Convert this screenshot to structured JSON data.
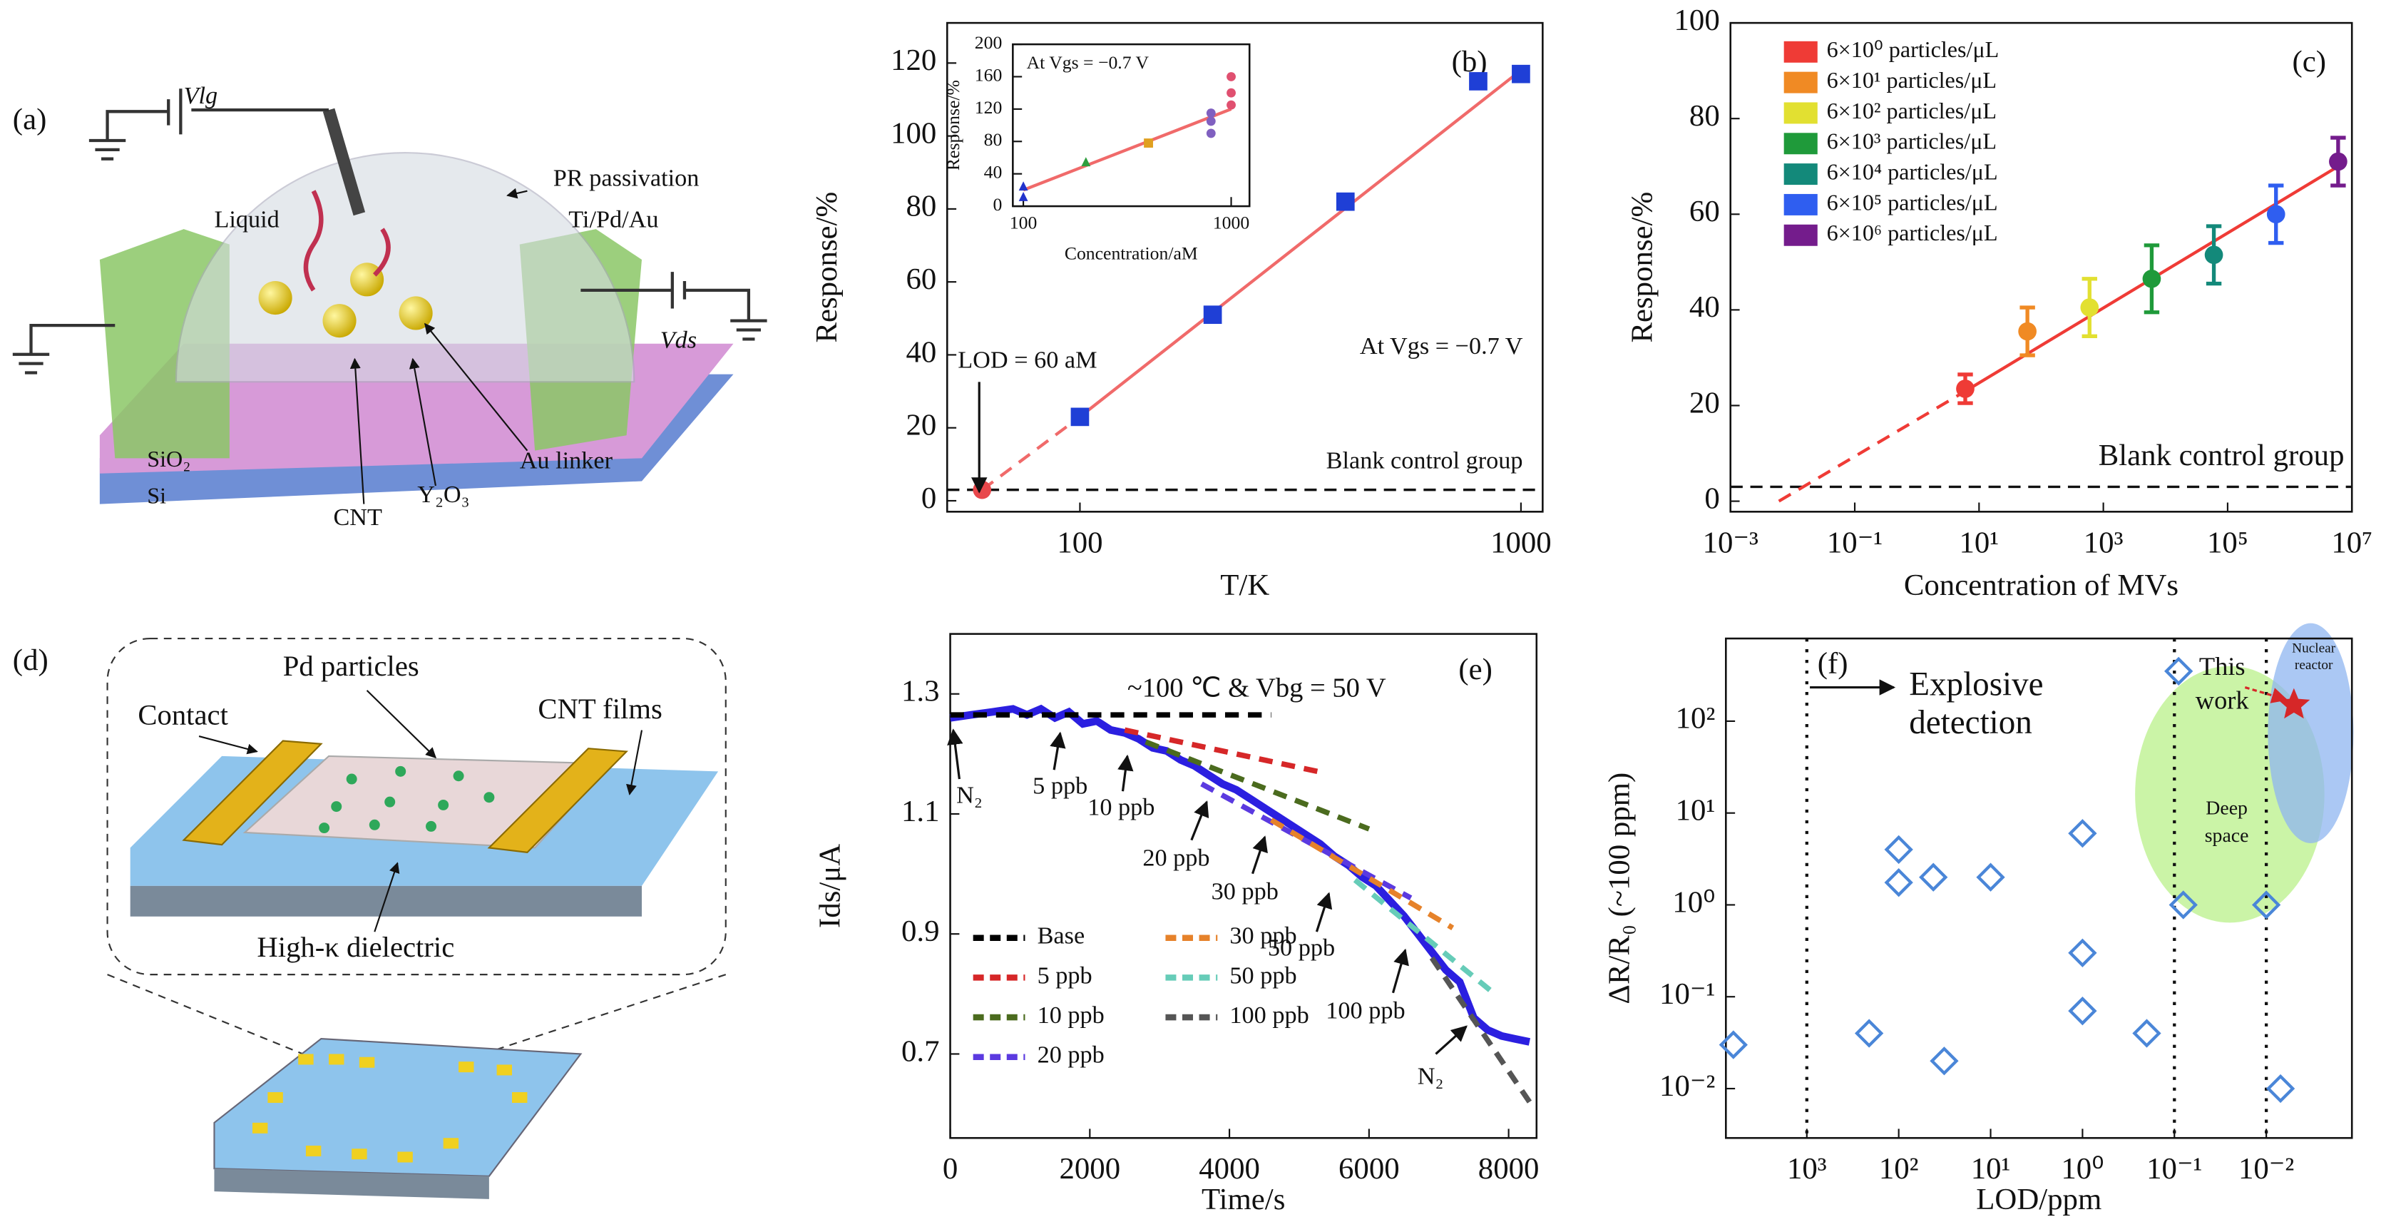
{
  "diagrams": {
    "a": {
      "labels": [
        "(a)",
        "Vlg",
        "PR passivation",
        "Ti/Pd/Au",
        "Liquid",
        "Vds",
        "SiO₂",
        "Si",
        "CNT",
        "Y₂O₃",
        "Au linker"
      ]
    },
    "d": {
      "labels": [
        "(d)",
        "Pd particles",
        "Contact",
        "CNT films",
        "High-κ dielectric"
      ]
    }
  },
  "chart_data": [
    {
      "type": "scatter",
      "panel_label": "(b)",
      "x_label": "T/K",
      "y_label": "Response/%",
      "xscale": "log",
      "xlim": [
        50,
        1120
      ],
      "ylim": [
        -3,
        131
      ],
      "xticks": [
        100,
        1000
      ],
      "yticks": [
        0,
        20,
        40,
        60,
        80,
        100,
        120
      ],
      "series": [
        {
          "color": "#1f3fd6",
          "marker": "square",
          "x": [
            100,
            200,
            400,
            800,
            1000
          ],
          "values": [
            23,
            51,
            82,
            115,
            117
          ]
        },
        {
          "color": "#e8474b",
          "marker": "circle",
          "x": [
            60
          ],
          "values": [
            3
          ]
        }
      ],
      "fits": [
        {
          "color": "#f06a6a",
          "dash": true,
          "x": [
            60,
            100
          ],
          "values": [
            3,
            23
          ]
        },
        {
          "color": "#f06a6a",
          "dash": false,
          "x": [
            100,
            1000
          ],
          "values": [
            23,
            118
          ]
        }
      ],
      "hline": 3,
      "annotations": [
        "LOD = 60 aM",
        "At Vgs = −0.7 V",
        "Blank control group"
      ]
    },
    {
      "type": "scatter",
      "title": "At Vgs = −0.7 V",
      "x_label": "Concentration/aM",
      "y_label": "Response/%",
      "xscale": "log",
      "xlim": [
        89,
        1225
      ],
      "ylim": [
        0,
        200
      ],
      "xticks": [
        100,
        1000
      ],
      "yticks": [
        0,
        40,
        80,
        120,
        160,
        200
      ],
      "series": [
        {
          "color": "#2233cc",
          "marker": "triangle",
          "x": [
            100,
            100
          ],
          "values": [
            12,
            25
          ]
        },
        {
          "color": "#2e9e3e",
          "marker": "triangle",
          "x": [
            200
          ],
          "values": [
            55
          ]
        },
        {
          "color": "#e0a020",
          "marker": "square",
          "x": [
            400
          ],
          "values": [
            78
          ]
        },
        {
          "color": "#8060c0",
          "marker": "circle",
          "x": [
            800,
            800,
            800
          ],
          "values": [
            90,
            105,
            115
          ]
        },
        {
          "color": "#e05070",
          "marker": "circle",
          "x": [
            1000,
            1000,
            1000
          ],
          "values": [
            125,
            140,
            160
          ]
        }
      ],
      "fits": [
        {
          "color": "#f06a6a",
          "dash": false,
          "x": [
            100,
            1000
          ],
          "values": [
            20,
            120
          ]
        }
      ]
    },
    {
      "type": "scatter",
      "panel_label": "(c)",
      "x_label": "Concentration of MVs",
      "y_label": "Response/%",
      "xscale": "log",
      "xlim": [
        0.001,
        10000000
      ],
      "ylim": [
        -2.2,
        100
      ],
      "xticks": [
        {
          "value": 0.001,
          "label": "10⁻³"
        },
        {
          "value": 0.1,
          "label": "10⁻¹"
        },
        {
          "value": 10,
          "label": "10¹"
        },
        {
          "value": 1000,
          "label": "10³"
        },
        {
          "value": 100000,
          "label": "10⁵"
        },
        {
          "value": 10000000,
          "label": "10⁷"
        }
      ],
      "yticks": [
        0,
        20,
        40,
        60,
        80,
        100
      ],
      "legend": "upper left",
      "series": [
        {
          "name": "6×10⁰ particles/μL",
          "color": "#ef3b36",
          "marker": "circle",
          "x": [
            6
          ],
          "values": [
            23.5
          ],
          "errors": [
            3
          ]
        },
        {
          "name": "6×10¹ particles/μL",
          "color": "#f08a24",
          "marker": "circle",
          "x": [
            60
          ],
          "values": [
            35.5
          ],
          "errors": [
            5
          ]
        },
        {
          "name": "6×10² particles/μL",
          "color": "#e2e031",
          "marker": "circle",
          "x": [
            600
          ],
          "values": [
            40.5
          ],
          "errors": [
            6
          ]
        },
        {
          "name": "6×10³ particles/μL",
          "color": "#1f9a3a",
          "marker": "circle",
          "x": [
            6000
          ],
          "values": [
            46.5
          ],
          "errors": [
            7
          ]
        },
        {
          "name": "6×10⁴ particles/μL",
          "color": "#13897a",
          "marker": "circle",
          "x": [
            60000
          ],
          "values": [
            51.5
          ],
          "errors": [
            6
          ]
        },
        {
          "name": "6×10⁵ particles/μL",
          "color": "#2f5ef0",
          "marker": "circle",
          "x": [
            600000
          ],
          "values": [
            60
          ],
          "errors": [
            6
          ]
        },
        {
          "name": "6×10⁶ particles/μL",
          "color": "#741c8c",
          "marker": "circle",
          "x": [
            6000000
          ],
          "values": [
            71
          ],
          "errors": [
            5
          ]
        }
      ],
      "fits": [
        {
          "color": "#ef3b36",
          "dash": true,
          "x": [
            0.006,
            6
          ],
          "values": [
            0,
            23
          ]
        },
        {
          "color": "#ef3b36",
          "dash": false,
          "x": [
            6,
            6000000
          ],
          "values": [
            23,
            70
          ]
        }
      ],
      "hline": 3,
      "annotations": [
        "Blank control group"
      ]
    },
    {
      "type": "line",
      "panel_label": "(e)",
      "x_label": "Time/s",
      "y_label": "Ids/μA",
      "xlim": [
        0,
        8400
      ],
      "ylim": [
        0.56,
        1.4
      ],
      "xticks": [
        0,
        2000,
        4000,
        6000,
        8000
      ],
      "yticks": [
        0.7,
        0.9,
        1.1,
        1.3
      ],
      "legend": "lower left",
      "series": [
        {
          "color": "#2b1fe0",
          "x": [
            0,
            300,
            600,
            900,
            1100,
            1300,
            1500,
            1700,
            1900,
            2100,
            2300,
            2500,
            2700,
            2900,
            3100,
            3300,
            3500,
            3700,
            3900,
            4100,
            4300,
            4500,
            4700,
            4900,
            5100,
            5300,
            5500,
            5700,
            5900,
            6100,
            6300,
            6500,
            6700,
            6900,
            7100,
            7300,
            7500,
            7700,
            7900,
            8100,
            8300
          ],
          "values": [
            1.26,
            1.265,
            1.27,
            1.275,
            1.265,
            1.275,
            1.26,
            1.27,
            1.25,
            1.255,
            1.24,
            1.235,
            1.225,
            1.21,
            1.205,
            1.19,
            1.18,
            1.165,
            1.15,
            1.14,
            1.125,
            1.11,
            1.095,
            1.08,
            1.065,
            1.05,
            1.03,
            1.015,
            0.995,
            0.98,
            0.955,
            0.93,
            0.9,
            0.87,
            0.84,
            0.82,
            0.76,
            0.74,
            0.73,
            0.725,
            0.72
          ]
        },
        {
          "name": "Base",
          "color": "#000000",
          "dash": true,
          "x": [
            0,
            4600
          ],
          "values": [
            1.265,
            1.265
          ]
        },
        {
          "name": "5 ppb",
          "color": "#d62728",
          "dash": true,
          "x": [
            2500,
            5300
          ],
          "values": [
            1.24,
            1.17
          ]
        },
        {
          "name": "10 ppb",
          "color": "#4b6b1e",
          "dash": true,
          "x": [
            2800,
            6000
          ],
          "values": [
            1.22,
            1.075
          ]
        },
        {
          "name": "20 ppb",
          "color": "#5b3ae0",
          "dash": true,
          "x": [
            3600,
            6600
          ],
          "values": [
            1.15,
            0.96
          ]
        },
        {
          "name": "30 ppb",
          "color": "#e6822a",
          "dash": true,
          "x": [
            4600,
            7200
          ],
          "values": [
            1.09,
            0.91
          ]
        },
        {
          "name": "50 ppb",
          "color": "#66ccb8",
          "dash": true,
          "x": [
            5800,
            7800
          ],
          "values": [
            0.99,
            0.8
          ]
        },
        {
          "name": "100 ppb",
          "color": "#555555",
          "dash": true,
          "x": [
            6900,
            8300
          ],
          "values": [
            0.86,
            0.62
          ]
        }
      ],
      "annotations": [
        "~100 ℃ & Vbg = 50 V",
        "N₂",
        "5 ppb",
        "10 ppb",
        "20 ppb",
        "30 ppb",
        "50 ppb",
        "100 ppb",
        "N₂"
      ]
    },
    {
      "type": "scatter",
      "panel_label": "(f)",
      "x_label": "LOD/ppm",
      "y_label": "ΔR/R₀ (~100 ppm)",
      "xscale": "log",
      "yscale": "log",
      "xlim": [
        7600,
        0.00117
      ],
      "ylim": [
        0.0029,
        794
      ],
      "xticks": [
        {
          "value": 1000,
          "label": "10³"
        },
        {
          "value": 100,
          "label": "10²"
        },
        {
          "value": 10,
          "label": "10¹"
        },
        {
          "value": 1,
          "label": "10⁰"
        },
        {
          "value": 0.1,
          "label": "10⁻¹"
        },
        {
          "value": 0.01,
          "label": "10⁻²"
        }
      ],
      "yticks": [
        {
          "value": 0.01,
          "label": "10⁻²"
        },
        {
          "value": 0.1,
          "label": "10⁻¹"
        },
        {
          "value": 1,
          "label": "10⁰"
        },
        {
          "value": 10,
          "label": "10¹"
        },
        {
          "value": 100,
          "label": "10²"
        }
      ],
      "vlines": [
        1000,
        0.1,
        0.01
      ],
      "series": [
        {
          "color": "#4a86d8",
          "marker": "diamond",
          "x": [
            6300,
            210,
            100,
            100,
            42,
            32,
            10,
            1,
            1,
            1,
            0.2,
            0.09,
            0.08,
            0.01,
            0.007
          ],
          "values": [
            0.03,
            0.04,
            4,
            1.75,
            2,
            0.02,
            2,
            6,
            0.3,
            0.07,
            0.04,
            350,
            1,
            1,
            0.01
          ]
        },
        {
          "color": "#d62728",
          "marker": "star",
          "x": [
            0.005
          ],
          "values": [
            150
          ]
        }
      ],
      "annotations": [
        "Explosive",
        "detection",
        "This",
        "work",
        "Deep",
        "space",
        "Nuclear",
        "reactor"
      ]
    }
  ]
}
